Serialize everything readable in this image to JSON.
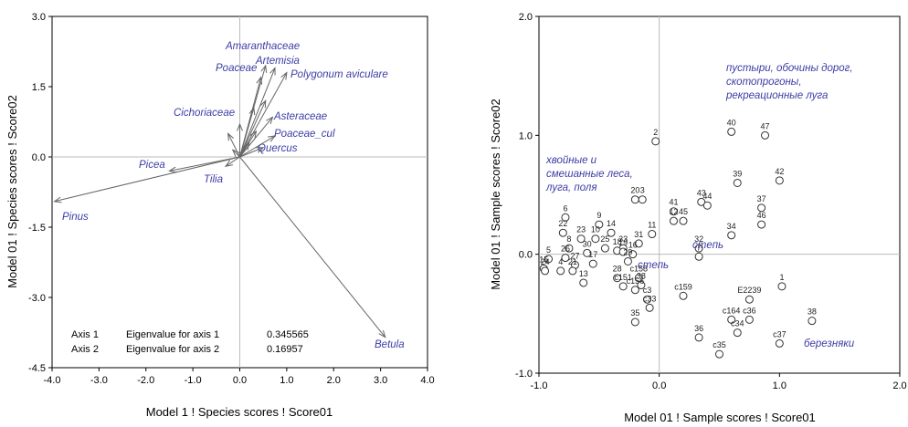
{
  "chart_data": [
    {
      "type": "biplot",
      "xlabel": "Model 1 ! Species scores ! Score01",
      "ylabel": "Model 01 ! Species scores ! Score02",
      "xlim": [
        -4.0,
        4.0
      ],
      "ylim": [
        -4.5,
        3.0
      ],
      "xticks": [
        {
          "v": -4.0,
          "t": "-4.0"
        },
        {
          "v": -3.0,
          "t": "-3.0"
        },
        {
          "v": -2.0,
          "t": "-2.0"
        },
        {
          "v": -1.0,
          "t": "-1.0"
        },
        {
          "v": 0.0,
          "t": "0.0"
        },
        {
          "v": 1.0,
          "t": "1.0"
        },
        {
          "v": 2.0,
          "t": "2.0"
        },
        {
          "v": 3.0,
          "t": "3.0"
        },
        {
          "v": 4.0,
          "t": "4.0"
        }
      ],
      "yticks": [
        {
          "v": 3.0,
          "t": "3.0"
        },
        {
          "v": 1.5,
          "t": "1.5"
        },
        {
          "v": 0.0,
          "t": "0.0"
        },
        {
          "v": -1.5,
          "t": "-1.5"
        },
        {
          "v": -3.0,
          "t": "-3.0"
        },
        {
          "v": -4.5,
          "t": "-4.5"
        }
      ],
      "arrows": [
        {
          "name": "Amaranthaceae",
          "x": 0.55,
          "y": 1.95
        },
        {
          "name": "Artemisia",
          "x": 0.75,
          "y": 1.9
        },
        {
          "name": "Poaceae",
          "x": 0.45,
          "y": 1.7
        },
        {
          "name": "Polygonum aviculare",
          "x": 1.0,
          "y": 1.8
        },
        {
          "name": "Cichoriaceae",
          "x": 0.0,
          "y": 0.7
        },
        {
          "name": "Asteraceae",
          "x": 0.7,
          "y": 0.85
        },
        {
          "name": "Poaceae_cul",
          "x": 0.75,
          "y": 0.45
        },
        {
          "name": "Quercus",
          "x": 0.5,
          "y": 0.2
        },
        {
          "name": "Picea",
          "x": -1.5,
          "y": -0.3
        },
        {
          "name": "Tilia",
          "x": -0.3,
          "y": -0.2
        },
        {
          "name": "Pinus",
          "x": -3.95,
          "y": -0.95
        },
        {
          "name": "Betula",
          "x": 3.1,
          "y": -3.85
        },
        {
          "name": "",
          "x": 0.3,
          "y": 1.05
        },
        {
          "name": "",
          "x": -0.25,
          "y": 0.5
        },
        {
          "name": "",
          "x": 0.55,
          "y": 1.2
        },
        {
          "name": "",
          "x": 0.2,
          "y": 0.3
        },
        {
          "name": "",
          "x": -0.15,
          "y": 0.15
        },
        {
          "name": "",
          "x": 0.35,
          "y": 0.55
        }
      ],
      "eigenvalues": [
        {
          "axis": "Axis 1",
          "label": "Eigenvalue for axis 1",
          "value": "0.345565"
        },
        {
          "axis": "Axis 2",
          "label": "Eigenvalue for axis 2",
          "value": "0.16957"
        }
      ]
    },
    {
      "type": "scatter",
      "xlabel": "Model 01 ! Sample scores ! Score01",
      "ylabel": "Model 01 ! Sample scores ! Score02",
      "xlim": [
        -1.0,
        2.0
      ],
      "ylim": [
        -1.0,
        2.0
      ],
      "xticks": [
        {
          "v": -1.0,
          "t": "-1.0"
        },
        {
          "v": 0.0,
          "t": "0.0"
        },
        {
          "v": 1.0,
          "t": "1.0"
        },
        {
          "v": 2.0,
          "t": "2.0"
        }
      ],
      "yticks": [
        {
          "v": 2.0,
          "t": "2.0"
        },
        {
          "v": 1.0,
          "t": "1.0"
        },
        {
          "v": 0.0,
          "t": "0.0"
        },
        {
          "v": -1.0,
          "t": "-1.0"
        }
      ],
      "points": [
        {
          "label": "2",
          "x": -0.03,
          "y": 0.95
        },
        {
          "label": "40",
          "x": 0.6,
          "y": 1.03
        },
        {
          "label": "47",
          "x": 0.88,
          "y": 1.0
        },
        {
          "label": "39",
          "x": 0.65,
          "y": 0.6
        },
        {
          "label": "42",
          "x": 1.0,
          "y": 0.62
        },
        {
          "label": "43",
          "x": 0.35,
          "y": 0.44
        },
        {
          "label": "44",
          "x": 0.4,
          "y": 0.41
        },
        {
          "label": "37",
          "x": 0.85,
          "y": 0.39
        },
        {
          "label": "46",
          "x": 0.85,
          "y": 0.25
        },
        {
          "label": "45",
          "x": 0.2,
          "y": 0.28
        },
        {
          "label": "34",
          "x": 0.6,
          "y": 0.16
        },
        {
          "label": "41",
          "x": 0.12,
          "y": 0.36
        },
        {
          "label": "12",
          "x": 0.12,
          "y": 0.28
        },
        {
          "label": "20",
          "x": -0.2,
          "y": 0.46
        },
        {
          "label": "3",
          "x": -0.14,
          "y": 0.46
        },
        {
          "label": "11",
          "x": -0.06,
          "y": 0.17
        },
        {
          "label": "9",
          "x": -0.5,
          "y": 0.25
        },
        {
          "label": "6",
          "x": -0.78,
          "y": 0.31
        },
        {
          "label": "22",
          "x": -0.8,
          "y": 0.18
        },
        {
          "label": "23",
          "x": -0.65,
          "y": 0.13
        },
        {
          "label": "10",
          "x": -0.53,
          "y": 0.13
        },
        {
          "label": "14",
          "x": -0.4,
          "y": 0.18
        },
        {
          "label": "31",
          "x": -0.17,
          "y": 0.09
        },
        {
          "label": "33",
          "x": -0.3,
          "y": 0.05
        },
        {
          "label": "25",
          "x": -0.45,
          "y": 0.05
        },
        {
          "label": "18",
          "x": -0.35,
          "y": 0.03
        },
        {
          "label": "8",
          "x": -0.75,
          "y": 0.05
        },
        {
          "label": "30",
          "x": -0.6,
          "y": 0.01
        },
        {
          "label": "19",
          "x": -0.3,
          "y": 0.02
        },
        {
          "label": "16",
          "x": -0.22,
          "y": 0.0
        },
        {
          "label": "5",
          "x": -0.92,
          "y": -0.04
        },
        {
          "label": "26",
          "x": -0.78,
          "y": -0.03
        },
        {
          "label": "27",
          "x": -0.7,
          "y": -0.09
        },
        {
          "label": "17",
          "x": -0.55,
          "y": -0.08
        },
        {
          "label": "29",
          "x": -0.26,
          "y": -0.06
        },
        {
          "label": "15",
          "x": -0.96,
          "y": -0.12
        },
        {
          "label": "4",
          "x": -0.82,
          "y": -0.14
        },
        {
          "label": "21",
          "x": -0.72,
          "y": -0.14
        },
        {
          "label": "24",
          "x": -0.95,
          "y": -0.14
        },
        {
          "label": "28",
          "x": -0.35,
          "y": -0.2
        },
        {
          "label": "13",
          "x": -0.63,
          "y": -0.24
        },
        {
          "label": "c158",
          "x": -0.17,
          "y": -0.2
        },
        {
          "label": "38",
          "x": -0.15,
          "y": -0.26
        },
        {
          "label": "c151",
          "x": -0.3,
          "y": -0.27
        },
        {
          "label": "c156",
          "x": -0.2,
          "y": -0.3
        },
        {
          "label": "c3",
          "x": -0.1,
          "y": -0.38
        },
        {
          "label": "c33",
          "x": -0.08,
          "y": -0.45
        },
        {
          "label": "c159",
          "x": 0.2,
          "y": -0.35
        },
        {
          "label": "35",
          "x": -0.2,
          "y": -0.57
        },
        {
          "label": "32",
          "x": 0.33,
          "y": 0.05
        },
        {
          "label": "7",
          "x": 0.33,
          "y": -0.02
        },
        {
          "label": "1",
          "x": 1.02,
          "y": -0.27
        },
        {
          "label": "E2239",
          "x": 0.75,
          "y": -0.38
        },
        {
          "label": "c164",
          "x": 0.6,
          "y": -0.55
        },
        {
          "label": "c36",
          "x": 0.75,
          "y": -0.55
        },
        {
          "label": "c34",
          "x": 0.65,
          "y": -0.66
        },
        {
          "label": "36",
          "x": 0.33,
          "y": -0.7
        },
        {
          "label": "38",
          "x": 1.27,
          "y": -0.56
        },
        {
          "label": "c37",
          "x": 1.0,
          "y": -0.75
        },
        {
          "label": "c35",
          "x": 0.5,
          "y": -0.84
        }
      ],
      "annotations": [
        {
          "lines": [
            "пустыри, обочины дорог,",
            "скотопрогоны,",
            "рекреационные луга"
          ]
        },
        {
          "lines": [
            "хвойные и",
            "смешанные леса,",
            "луга, поля"
          ]
        },
        {
          "lines": [
            "степь"
          ]
        },
        {
          "lines": [
            "степь"
          ]
        },
        {
          "lines": [
            "березняки"
          ]
        }
      ]
    }
  ]
}
